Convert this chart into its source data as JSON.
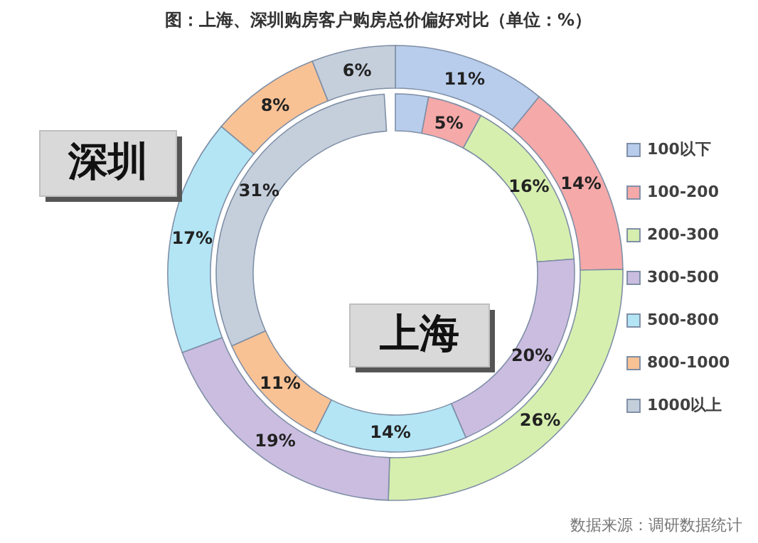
{
  "chart_data": {
    "type": "donut",
    "title": "图：上海、深圳购房客户购房总价偏好对比（单位：%）",
    "categories": [
      "100以下",
      "100-200",
      "200-300",
      "300-500",
      "500-800",
      "800-1000",
      "1000以上"
    ],
    "colors": [
      "#b8cdec",
      "#f5a9a9",
      "#d6efae",
      "#cbbde0",
      "#b3e5f5",
      "#f9c295",
      "#c5cfdc"
    ],
    "series": [
      {
        "name": "深圳",
        "values": [
          11,
          14,
          26,
          19,
          17,
          8,
          6
        ],
        "value_labels": [
          "11%",
          "14%",
          "26%",
          "19%",
          "17%",
          "8%",
          "6%"
        ]
      },
      {
        "name": "上海",
        "values": [
          3,
          5,
          16,
          20,
          14,
          11,
          31
        ],
        "value_labels": [
          null,
          "5%",
          "16%",
          "20%",
          "14%",
          "11%",
          "31%"
        ]
      }
    ],
    "legend": "right",
    "annotations": [
      "数据来源：调研数据统计"
    ]
  }
}
